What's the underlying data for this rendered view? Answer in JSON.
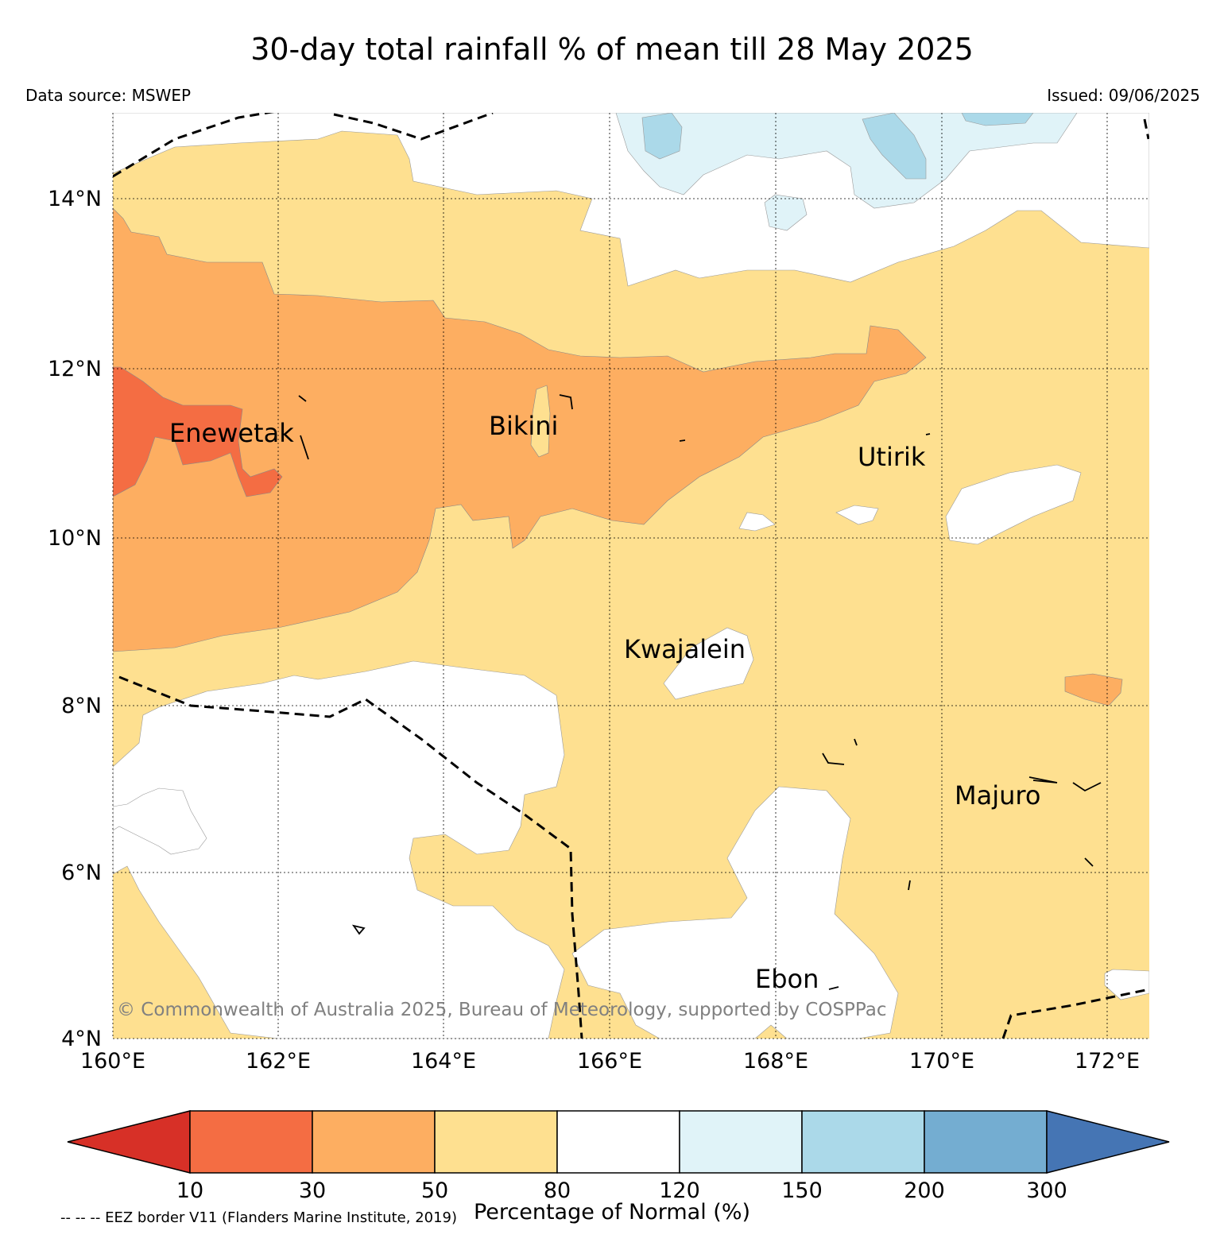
{
  "title": "30-day total rainfall % of mean till 28 May 2025",
  "data_source": "Data source: MSWEP",
  "issued": "Issued: 09/06/2025",
  "copyright": "© Commonwealth of Australia 2025, Bureau of Meteorology, supported by COSPPac",
  "footnote": "-- -- -- EEZ border V11 (Flanders Marine Institute, 2019)",
  "colorbar": {
    "label": "Percentage of Normal (%)",
    "ticks": [
      "10",
      "30",
      "50",
      "80",
      "120",
      "150",
      "200",
      "300"
    ],
    "colors": [
      "#d73027",
      "#f46d43",
      "#fdae61",
      "#fee090",
      "#ffffff",
      "#e0f3f8",
      "#abd9e9",
      "#74add1",
      "#4575b4"
    ]
  },
  "axes": {
    "lon_labels": [
      "160°E",
      "162°E",
      "164°E",
      "166°E",
      "168°E",
      "170°E",
      "172°E"
    ],
    "lat_labels": [
      "14°N",
      "12°N",
      "10°N",
      "8°N",
      "6°N",
      "4°N"
    ]
  },
  "places": [
    "Enewetak",
    "Bikini",
    "Utirik",
    "Kwajalein",
    "Majuro",
    "Ebon"
  ],
  "legend_colors": {
    "rain_10_30": "#f46d43",
    "rain_30_50": "#fdae61",
    "rain_50_80": "#fee090",
    "rain_80_120": "#ffffff",
    "rain_120_150": "#e0f3f8",
    "rain_150_200": "#abd9e9"
  }
}
